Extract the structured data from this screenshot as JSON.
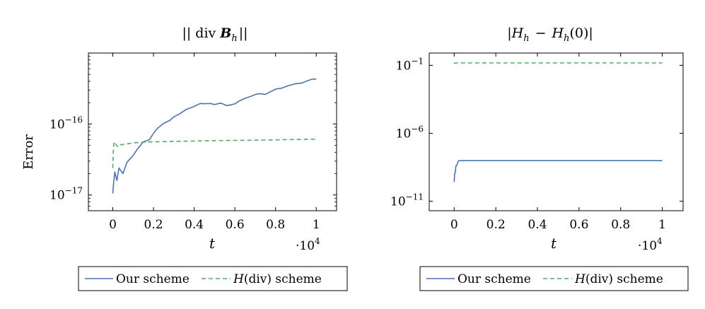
{
  "chart_data": [
    {
      "type": "line",
      "title": "|| div B_h ||",
      "title_parts": {
        "bars": "||",
        "op": "div",
        "var": "B",
        "sub": "h"
      },
      "xlabel": "t",
      "ylabel": "Error",
      "x_multiplier_label": "·10",
      "x_multiplier_exp": "4",
      "xlim": [
        -0.12,
        1.1
      ],
      "ylim": [
        6e-18,
        1e-15
      ],
      "yscale": "log",
      "xticks": [
        0,
        0.2,
        0.4,
        0.6,
        0.8,
        1
      ],
      "xtick_labels": [
        "0",
        "0.2",
        "0.4",
        "0.6",
        "0.8",
        "1"
      ],
      "yticks": [
        1e-17,
        1e-16
      ],
      "ytick_labels": [
        {
          "base": "10",
          "exp": "−17"
        },
        {
          "base": "10",
          "exp": "−16"
        }
      ],
      "series": [
        {
          "name": "Our scheme",
          "color": "#4c72b0",
          "dash": "solid",
          "x": [
            0,
            0.004,
            0.01,
            0.02,
            0.03,
            0.05,
            0.07,
            0.1,
            0.12,
            0.15,
            0.18,
            0.2,
            0.22,
            0.25,
            0.28,
            0.3,
            0.33,
            0.36,
            0.4,
            0.43,
            0.45,
            0.48,
            0.5,
            0.53,
            0.56,
            0.58,
            0.6,
            0.62,
            0.65,
            0.68,
            0.7,
            0.72,
            0.75,
            0.78,
            0.8,
            0.83,
            0.86,
            0.9,
            0.93,
            0.96,
            0.98,
            1.0
          ],
          "y": [
            1.05e-17,
            1.5e-17,
            2.1e-17,
            1.6e-17,
            2.4e-17,
            2e-17,
            2.9e-17,
            3.6e-17,
            4.4e-17,
            5.6e-17,
            6e-17,
            7.4e-17,
            8.7e-17,
            1.02e-16,
            1.12e-16,
            1.26e-16,
            1.4e-16,
            1.6e-16,
            1.77e-16,
            1.95e-16,
            1.93e-16,
            1.95e-16,
            1.88e-16,
            1.97e-16,
            1.82e-16,
            1.86e-16,
            1.92e-16,
            2.1e-16,
            2.3e-16,
            2.46e-16,
            2.6e-16,
            2.68e-16,
            2.62e-16,
            2.9e-16,
            3.1e-16,
            3.2e-16,
            3.45e-16,
            3.7e-16,
            3.78e-16,
            4.1e-16,
            4.28e-16,
            4.3e-16
          ]
        },
        {
          "name": "H(div) scheme",
          "color": "#55a868",
          "dash": "dashed",
          "x": [
            0,
            0.003,
            0.006,
            0.01,
            0.015,
            0.02,
            0.03,
            0.04,
            0.06,
            0.08,
            0.1,
            0.15,
            0.2,
            0.25,
            0.3,
            0.35,
            0.4,
            0.45,
            0.5,
            0.55,
            0.6,
            0.65,
            0.7,
            0.75,
            0.8,
            0.85,
            0.9,
            0.95,
            1.0
          ],
          "y": [
            2.4e-17,
            4.5e-17,
            5.6e-17,
            5.4e-17,
            5.2e-17,
            4.9e-17,
            4.8e-17,
            5.1e-17,
            5.2e-17,
            5.3e-17,
            5.4e-17,
            5.55e-17,
            5.6e-17,
            5.65e-17,
            5.7e-17,
            5.72e-17,
            5.75e-17,
            5.8e-17,
            5.82e-17,
            5.85e-17,
            5.88e-17,
            5.9e-17,
            5.92e-17,
            5.95e-17,
            5.98e-17,
            6.02e-17,
            6.05e-17,
            6.08e-17,
            6.1e-17
          ]
        }
      ],
      "legend": {
        "placement": "below"
      }
    },
    {
      "type": "line",
      "title": "|H_h − H_h(0)|",
      "title_parts": {
        "var": "H",
        "sub": "h",
        "minus": "−",
        "arg": "(0)"
      },
      "xlabel": "t",
      "ylabel": "",
      "x_multiplier_label": "·10",
      "x_multiplier_exp": "4",
      "xlim": [
        -0.12,
        1.1
      ],
      "ylim": [
        2e-12,
        0.8
      ],
      "yscale": "log",
      "xticks": [
        0,
        0.2,
        0.4,
        0.6,
        0.8,
        1
      ],
      "xtick_labels": [
        "0",
        "0.2",
        "0.4",
        "0.6",
        "0.8",
        "1"
      ],
      "yticks": [
        1e-11,
        1e-06,
        0.1
      ],
      "ytick_labels": [
        {
          "base": "10",
          "exp": "−11"
        },
        {
          "base": "10",
          "exp": "−6"
        },
        {
          "base": "10",
          "exp": "−1"
        }
      ],
      "series": [
        {
          "name": "Our scheme",
          "color": "#4c72b0",
          "dash": "solid",
          "x": [
            0,
            0.002,
            0.005,
            0.008,
            0.012,
            0.016,
            0.02,
            0.025,
            0.05,
            0.1,
            0.2,
            0.4,
            0.6,
            0.8,
            1.0
          ],
          "y": [
            2.6e-10,
            1.1e-09,
            1.2e-09,
            3.8e-09,
            4.2e-09,
            6.3e-09,
            9.2e-09,
            9.6e-09,
            9.6e-09,
            9.6e-09,
            9.6e-09,
            9.6e-09,
            9.6e-09,
            9.6e-09,
            9.6e-09
          ]
        },
        {
          "name": "H(div) scheme",
          "color": "#55a868",
          "dash": "dashed",
          "x": [
            0,
            0.002,
            0.005,
            0.01,
            0.05,
            0.2,
            0.4,
            0.6,
            0.8,
            1.0
          ],
          "y": [
            0.13,
            0.145,
            0.148,
            0.15,
            0.15,
            0.15,
            0.15,
            0.15,
            0.15,
            0.15
          ]
        }
      ],
      "legend": {
        "placement": "below"
      }
    }
  ],
  "legend_text": {
    "ours": "Our scheme",
    "hdiv_H": "H",
    "hdiv_rest": "(div) scheme"
  },
  "colors": {
    "ours": "#4c72b0",
    "hdiv": "#55a868"
  }
}
